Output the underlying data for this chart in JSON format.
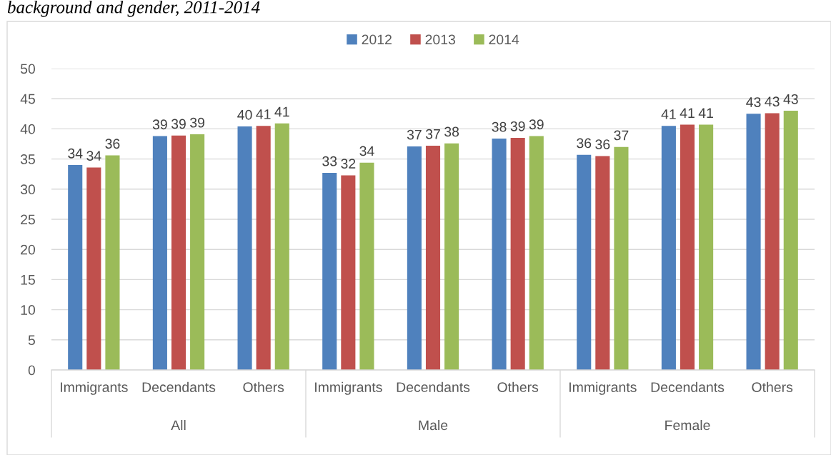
{
  "chart_data": {
    "type": "bar",
    "title": "background and gender, 2011-2014",
    "categories": [
      "Immigrants",
      "Decendants",
      "Others",
      "Immigrants",
      "Decendants",
      "Others",
      "Immigrants",
      "Decendants",
      "Others"
    ],
    "series": [
      {
        "name": "2012",
        "color": "#4f81bd",
        "values": [
          34.0,
          38.8,
          40.4,
          32.7,
          37.1,
          38.4,
          35.7,
          40.5,
          42.5
        ],
        "value_labels": [
          "34",
          "39",
          "40",
          "33",
          "37",
          "38",
          "36",
          "41",
          "43"
        ]
      },
      {
        "name": "2013",
        "color": "#c0504d",
        "values": [
          33.6,
          38.9,
          40.5,
          32.3,
          37.2,
          38.5,
          35.5,
          40.7,
          42.6
        ],
        "value_labels": [
          "34",
          "39",
          "41",
          "32",
          "37",
          "39",
          "36",
          "41",
          "43"
        ]
      },
      {
        "name": "2014",
        "color": "#9bbb59",
        "values": [
          35.6,
          39.1,
          40.9,
          34.4,
          37.6,
          38.8,
          37.0,
          40.7,
          43.0
        ],
        "value_labels": [
          "36",
          "39",
          "41",
          "34",
          "38",
          "39",
          "37",
          "41",
          "43"
        ]
      }
    ],
    "annotations": [
      "All",
      "Male",
      "Female"
    ],
    "ylim": [
      0,
      50
    ],
    "yticks": [
      0,
      5,
      10,
      15,
      20,
      25,
      30,
      35,
      40,
      45,
      50
    ],
    "grid": "y",
    "legend": "top"
  }
}
